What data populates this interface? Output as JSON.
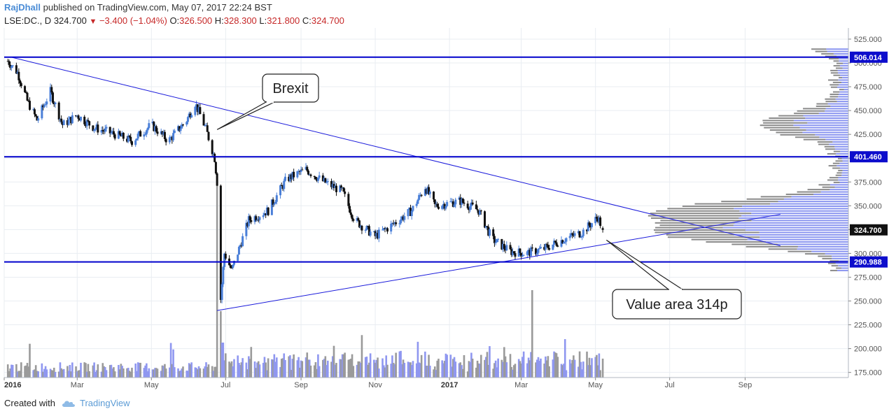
{
  "header": {
    "author": "RajDhall",
    "published": "published on TradingView.com, May 07, 2017 22:24 BST"
  },
  "quote": {
    "symbol": "LSE:DC., D",
    "last": "324.700",
    "change": "−3.400 (−1.04%)",
    "o_label": "O:",
    "o": "326.500",
    "h_label": "H:",
    "h": "328.300",
    "l_label": "L:",
    "l": "321.800",
    "c_label": "C:",
    "c": "324.700"
  },
  "footer": {
    "created_with": "Created with",
    "brand": "TradingView"
  },
  "colors": {
    "up": "#4a7fd8",
    "down": "#111111",
    "line": "#1a1adb",
    "hline": "#0000cc",
    "grid": "#e9edf2",
    "tag_bg": "#0d0dcc",
    "price_tag_bg": "#111111"
  },
  "chart_data": {
    "type": "candlestick",
    "title": "",
    "y_axis": {
      "min": 170,
      "max": 530,
      "ticks": [
        "175.000",
        "200.000",
        "225.000",
        "250.000",
        "275.000",
        "300.000",
        "325.000",
        "350.000",
        "375.000",
        "400.000",
        "425.000",
        "450.000",
        "475.000",
        "500.000",
        "525.000"
      ]
    },
    "x_axis": {
      "labels": [
        {
          "text": "2016",
          "bold": true,
          "date": "2016-01-01"
        },
        {
          "text": "Mar",
          "bold": false,
          "date": "2016-03-01"
        },
        {
          "text": "May",
          "bold": false,
          "date": "2016-05-01"
        },
        {
          "text": "Jul",
          "bold": false,
          "date": "2016-07-01"
        },
        {
          "text": "Sep",
          "bold": false,
          "date": "2016-09-01"
        },
        {
          "text": "Nov",
          "bold": false,
          "date": "2016-11-01"
        },
        {
          "text": "2017",
          "bold": true,
          "date": "2017-01-01"
        },
        {
          "text": "Mar",
          "bold": false,
          "date": "2017-03-01"
        },
        {
          "text": "May",
          "bold": false,
          "date": "2017-05-01"
        },
        {
          "text": "Jul",
          "bold": false,
          "date": "2017-07-01"
        },
        {
          "text": "Sep",
          "bold": false,
          "date": "2017-09-01"
        }
      ],
      "range": [
        "2016-01-01",
        "2017-10-01"
      ]
    },
    "horizontal_levels": [
      {
        "value": 506.014,
        "label": "506.014"
      },
      {
        "value": 401.46,
        "label": "401.460"
      },
      {
        "value": 290.988,
        "label": "290.988"
      }
    ],
    "last_price": {
      "value": 324.7,
      "label": "324.700"
    },
    "trendlines": [
      {
        "start": {
          "date": "2016-01-07",
          "price": 506
        },
        "end": {
          "date": "2017-09-30",
          "price": 308
        }
      },
      {
        "start": {
          "date": "2016-06-24",
          "price": 240
        },
        "end": {
          "date": "2017-09-30",
          "price": 341
        }
      }
    ],
    "annotations": [
      {
        "text": "Brexit",
        "target": {
          "date": "2016-06-24",
          "price": 430
        }
      },
      {
        "text": "Value area 314p",
        "target": {
          "date": "2017-05-10",
          "price": 314
        }
      }
    ],
    "price_path": [
      {
        "date": "2016-01-04",
        "price": 502
      },
      {
        "date": "2016-01-12",
        "price": 490
      },
      {
        "date": "2016-01-20",
        "price": 460
      },
      {
        "date": "2016-01-28",
        "price": 440
      },
      {
        "date": "2016-02-08",
        "price": 470
      },
      {
        "date": "2016-02-18",
        "price": 435
      },
      {
        "date": "2016-03-01",
        "price": 445
      },
      {
        "date": "2016-03-15",
        "price": 432
      },
      {
        "date": "2016-04-01",
        "price": 425
      },
      {
        "date": "2016-04-15",
        "price": 418
      },
      {
        "date": "2016-05-01",
        "price": 435
      },
      {
        "date": "2016-05-15",
        "price": 418
      },
      {
        "date": "2016-05-30",
        "price": 440
      },
      {
        "date": "2016-06-06",
        "price": 458
      },
      {
        "date": "2016-06-15",
        "price": 430
      },
      {
        "date": "2016-06-22",
        "price": 400
      },
      {
        "date": "2016-06-24",
        "price": 375
      },
      {
        "date": "2016-06-27",
        "price": 252
      },
      {
        "date": "2016-06-30",
        "price": 300
      },
      {
        "date": "2016-07-06",
        "price": 282
      },
      {
        "date": "2016-07-20",
        "price": 335
      },
      {
        "date": "2016-08-05",
        "price": 345
      },
      {
        "date": "2016-08-20",
        "price": 378
      },
      {
        "date": "2016-09-05",
        "price": 388
      },
      {
        "date": "2016-09-20",
        "price": 375
      },
      {
        "date": "2016-10-05",
        "price": 365
      },
      {
        "date": "2016-10-15",
        "price": 335
      },
      {
        "date": "2016-11-01",
        "price": 318
      },
      {
        "date": "2016-11-15",
        "price": 330
      },
      {
        "date": "2016-12-01",
        "price": 345
      },
      {
        "date": "2016-12-12",
        "price": 370
      },
      {
        "date": "2016-12-20",
        "price": 350
      },
      {
        "date": "2017-01-10",
        "price": 355
      },
      {
        "date": "2017-01-25",
        "price": 345
      },
      {
        "date": "2017-02-05",
        "price": 315
      },
      {
        "date": "2017-02-20",
        "price": 302
      },
      {
        "date": "2017-03-05",
        "price": 300
      },
      {
        "date": "2017-03-20",
        "price": 305
      },
      {
        "date": "2017-04-05",
        "price": 315
      },
      {
        "date": "2017-04-20",
        "price": 322
      },
      {
        "date": "2017-05-03",
        "price": 338
      },
      {
        "date": "2017-05-07",
        "price": 324.7
      }
    ],
    "volume_spikes": [
      {
        "date": "2016-06-24",
        "value": "max"
      },
      {
        "date": "2017-03-10",
        "value": "high"
      }
    ],
    "volume_profile_peaks": [
      {
        "price": 320,
        "level": "high"
      },
      {
        "price": 345,
        "level": "high"
      },
      {
        "price": 435,
        "level": "medium"
      },
      {
        "price": 515,
        "level": "low"
      }
    ]
  }
}
